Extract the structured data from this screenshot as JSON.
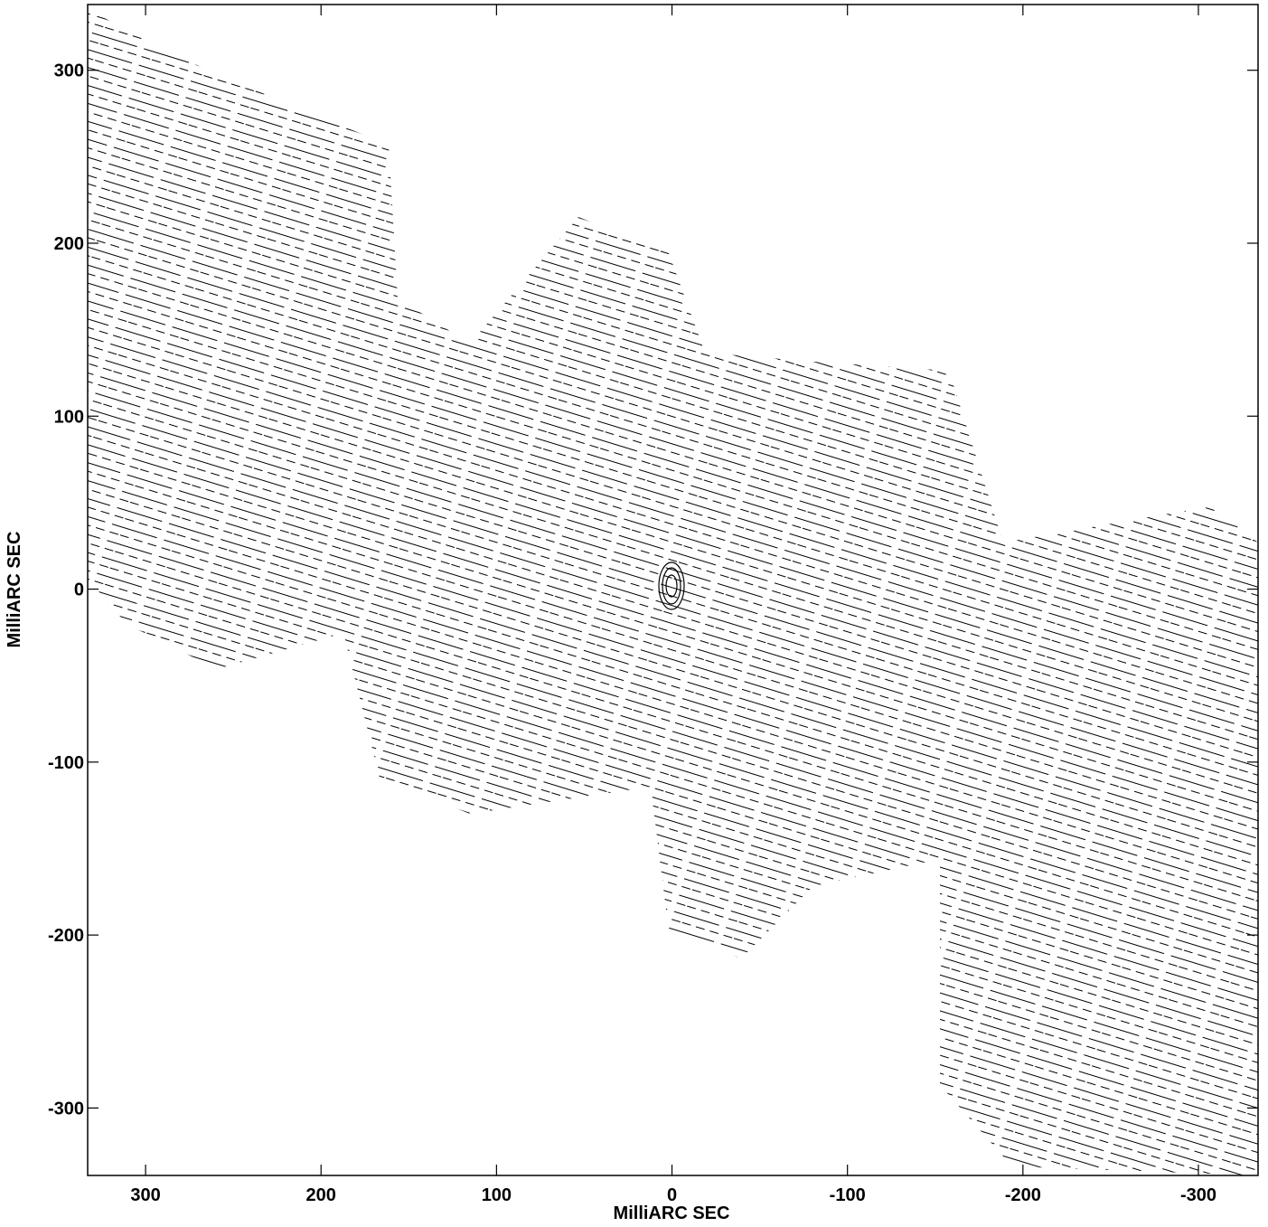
{
  "chart_data": {
    "type": "contour",
    "xlabel": "MilliARC SEC",
    "ylabel": "MilliARC SEC",
    "xlim": [
      333,
      -334
    ],
    "ylim": [
      -339,
      338
    ],
    "xticks": [
      300,
      200,
      100,
      0,
      -100,
      -200,
      -300
    ],
    "yticks": [
      300,
      200,
      100,
      0,
      -100,
      -200,
      -300
    ]
  }
}
